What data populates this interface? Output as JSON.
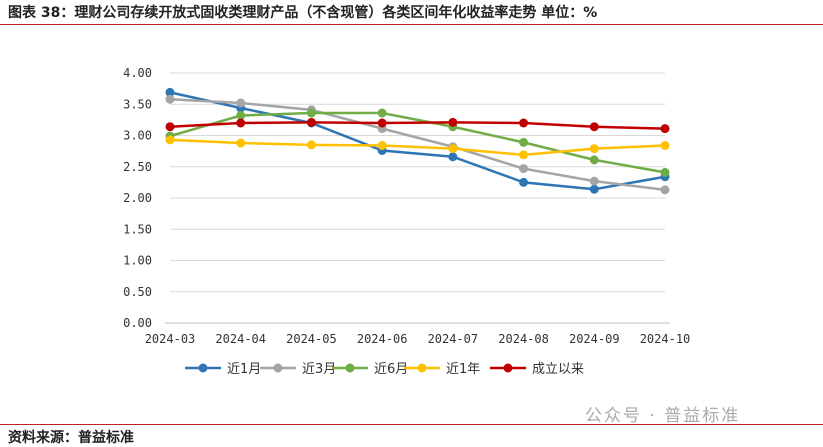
{
  "title": "图表 38：理财公司存续开放式固收类理财产品（不含现管）各类区间年化收益率走势    单位：%",
  "source": "资料来源：普益标准",
  "watermark": "公众号 · 普益标准",
  "chart_data": {
    "type": "line",
    "categories": [
      "2024-03",
      "2024-04",
      "2024-05",
      "2024-06",
      "2024-07",
      "2024-08",
      "2024-09",
      "2024-10"
    ],
    "ylim": [
      0,
      4
    ],
    "yticks": [
      "0.00",
      "0.50",
      "1.00",
      "1.50",
      "2.00",
      "2.50",
      "3.00",
      "3.50",
      "4.00"
    ],
    "grid": true,
    "legend": "bottom",
    "series": [
      {
        "name": "近1月",
        "color": "#2e75b6",
        "values": [
          3.69,
          3.44,
          3.2,
          2.76,
          2.66,
          2.25,
          2.14,
          2.34
        ]
      },
      {
        "name": "近3月",
        "color": "#a5a5a5",
        "values": [
          3.58,
          3.52,
          3.41,
          3.11,
          2.82,
          2.47,
          2.27,
          2.13
        ]
      },
      {
        "name": "近6月",
        "color": "#70ad47",
        "values": [
          2.99,
          3.32,
          3.36,
          3.36,
          3.14,
          2.89,
          2.61,
          2.41
        ]
      },
      {
        "name": "近1年",
        "color": "#ffc000",
        "values": [
          2.93,
          2.88,
          2.85,
          2.84,
          2.79,
          2.69,
          2.79,
          2.84
        ]
      },
      {
        "name": "成立以来",
        "color": "#c00000",
        "values": [
          3.14,
          3.2,
          3.21,
          3.2,
          3.21,
          3.2,
          3.14,
          3.11
        ]
      }
    ]
  }
}
